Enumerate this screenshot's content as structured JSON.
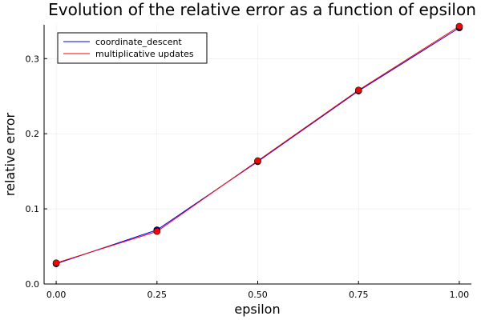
{
  "chart_data": {
    "type": "line",
    "title": "Evolution of the relative error as a function of epsilon",
    "xlabel": "epsilon",
    "ylabel": "relative error",
    "x": [
      0.0,
      0.25,
      0.5,
      0.75,
      1.0
    ],
    "xticks": [
      "0.00",
      "0.25",
      "0.50",
      "0.75",
      "1.00"
    ],
    "yticks": [
      "0.0",
      "0.1",
      "0.2",
      "0.3"
    ],
    "xlim": [
      -0.03,
      1.03
    ],
    "ylim": [
      0.0,
      0.345
    ],
    "grid": true,
    "legend_position": "top-left",
    "series": [
      {
        "name": "coordinate_descent",
        "color": "#0000ff",
        "marker_color": "#00008b",
        "values": [
          0.027,
          0.072,
          0.163,
          0.257,
          0.341
        ]
      },
      {
        "name": "multiplicative updates",
        "color": "#ff0000",
        "marker_color": "#ff0000",
        "values": [
          0.028,
          0.07,
          0.164,
          0.258,
          0.343
        ]
      }
    ]
  }
}
